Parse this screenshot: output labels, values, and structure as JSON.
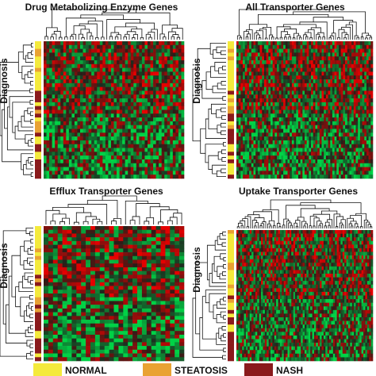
{
  "panels": [
    {
      "title": "Drug Metabolizing Enzyme Genes",
      "row_label": "Diagnosis"
    },
    {
      "title": "All Transporter Genes",
      "row_label": "Diagnosis"
    },
    {
      "title": "Efflux Transporter Genes",
      "row_label": "Diagnosis"
    },
    {
      "title": "Uptake Transporter Genes",
      "row_label": "Diagnosis"
    }
  ],
  "legend": [
    {
      "label": "NORMAL",
      "color": "#f4ea3c"
    },
    {
      "label": "STEATOSIS",
      "color": "#e9a233"
    },
    {
      "label": "NASH",
      "color": "#8a1a1c"
    }
  ]
}
